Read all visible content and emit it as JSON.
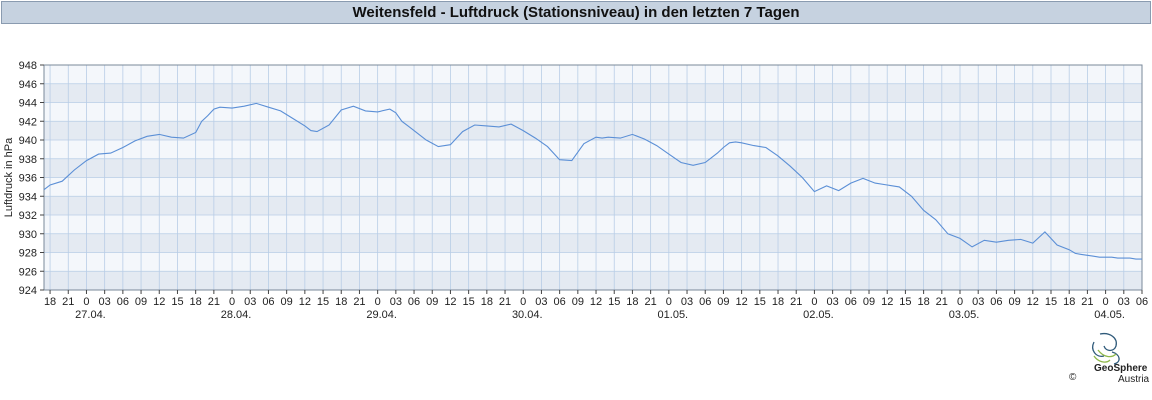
{
  "header": {
    "title": "Weitensfeld - Luftdruck (Stationsniveau) in den letzten 7 Tagen"
  },
  "footer": {
    "brand": "GeoSphere",
    "brand_sub": "Austria",
    "copyright": "©"
  },
  "colors": {
    "line": "#5b8fd6",
    "band": "#e4eaf2",
    "plot_bg": "#f4f7fb",
    "grid": "#b8cde6"
  },
  "chart_data": {
    "type": "line",
    "title": "Weitensfeld - Luftdruck (Stationsniveau) in den letzten 7 Tagen",
    "ylabel": "Luftdruck in hPa",
    "xlabel": "",
    "ylim": [
      924,
      948
    ],
    "yticks": [
      924,
      926,
      928,
      930,
      932,
      934,
      936,
      938,
      940,
      942,
      944,
      946,
      948
    ],
    "x_unit": "hours since 26.04. 18:00",
    "xlim": [
      -1,
      180
    ],
    "hour_ticks": [
      "18",
      "21",
      "0",
      "03",
      "06",
      "09",
      "12",
      "15",
      "18",
      "21",
      "0",
      "03",
      "06",
      "09",
      "12",
      "15",
      "18",
      "21",
      "0",
      "03",
      "06",
      "09",
      "12",
      "15",
      "18",
      "21",
      "0",
      "03",
      "06",
      "09",
      "12",
      "15",
      "18",
      "21",
      "0",
      "03",
      "06",
      "09",
      "12",
      "15",
      "18",
      "21",
      "0",
      "03",
      "06",
      "09",
      "12",
      "15",
      "18",
      "21",
      "0",
      "03",
      "06",
      "09",
      "12",
      "15",
      "18",
      "21",
      "0",
      "03",
      "06"
    ],
    "date_labels": [
      "27.04.",
      "28.04.",
      "29.04.",
      "30.04.",
      "01.05.",
      "02.05.",
      "03.05.",
      "04.05."
    ],
    "grid": true,
    "series": [
      {
        "x": [
          -1,
          0,
          2,
          4,
          6,
          8,
          10,
          12,
          14,
          16,
          18,
          20,
          22,
          24,
          25,
          26,
          27,
          28,
          30,
          32,
          34,
          36,
          38,
          40,
          42,
          43,
          44,
          46,
          48,
          50,
          52,
          54,
          56,
          57,
          58,
          59,
          60,
          62,
          64,
          66,
          68,
          70,
          72,
          74,
          76,
          78,
          80,
          82,
          84,
          86,
          88,
          90,
          91,
          92,
          94,
          96,
          98,
          100,
          102,
          104,
          106,
          108,
          110,
          111,
          112,
          113,
          114,
          116,
          118,
          120,
          122,
          124,
          126,
          128,
          130,
          132,
          134,
          136,
          138,
          140,
          142,
          144,
          146,
          148,
          150,
          152,
          154,
          156,
          158,
          160,
          162,
          164,
          166,
          168,
          169,
          170,
          171,
          172,
          173,
          174,
          175,
          176,
          177,
          178,
          179,
          180
        ],
        "values": [
          934.7,
          935.2,
          935.6,
          936.8,
          937.8,
          938.5,
          938.6,
          939.2,
          939.9,
          940.4,
          940.6,
          940.3,
          940.2,
          940.8,
          942.0,
          942.6,
          943.3,
          943.5,
          943.4,
          943.6,
          943.9,
          943.5,
          943.1,
          942.3,
          941.5,
          941.0,
          940.9,
          941.6,
          943.2,
          943.6,
          943.1,
          943.0,
          943.3,
          942.9,
          942.0,
          941.5,
          941.0,
          940.0,
          939.3,
          939.5,
          940.9,
          941.6,
          941.5,
          941.4,
          941.7,
          941.0,
          940.2,
          939.3,
          937.9,
          937.8,
          939.6,
          940.3,
          940.2,
          940.3,
          940.2,
          940.6,
          940.1,
          939.4,
          938.5,
          937.6,
          937.3,
          937.6,
          938.6,
          939.2,
          939.7,
          939.8,
          939.7,
          939.4,
          939.2,
          938.3,
          937.2,
          936.0,
          934.5,
          935.1,
          934.6,
          935.4,
          935.9,
          935.4,
          935.2,
          935.0,
          934.0,
          932.5,
          931.5,
          930.0,
          929.5,
          928.6,
          929.3,
          929.1,
          929.3,
          929.4,
          929.0,
          930.2,
          928.8,
          928.3,
          927.9,
          927.8,
          927.7,
          927.6,
          927.5,
          927.5,
          927.5,
          927.4,
          927.4,
          927.4,
          927.3,
          927.3
        ]
      }
    ]
  }
}
